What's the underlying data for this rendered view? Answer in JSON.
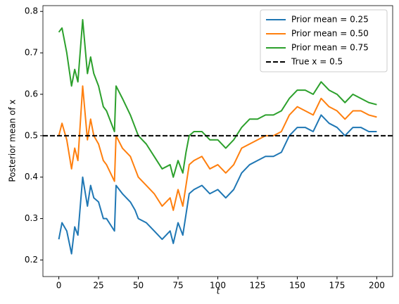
{
  "chart_data": {
    "type": "line",
    "xlabel": "t",
    "ylabel": "Posterior mean of x",
    "x": [
      0,
      2,
      5,
      8,
      10,
      12,
      15,
      18,
      20,
      22,
      25,
      28,
      30,
      35,
      36,
      40,
      45,
      48,
      50,
      55,
      60,
      65,
      70,
      72,
      75,
      78,
      80,
      82,
      85,
      90,
      95,
      100,
      105,
      110,
      115,
      120,
      125,
      130,
      135,
      140,
      145,
      150,
      155,
      160,
      165,
      170,
      175,
      180,
      185,
      190,
      195,
      200
    ],
    "series": [
      {
        "name": "Prior mean = 0.25",
        "color": "#1f77b4",
        "values": [
          0.25,
          0.29,
          0.27,
          0.215,
          0.28,
          0.26,
          0.4,
          0.33,
          0.38,
          0.35,
          0.34,
          0.3,
          0.3,
          0.27,
          0.38,
          0.36,
          0.34,
          0.32,
          0.3,
          0.29,
          0.27,
          0.25,
          0.27,
          0.24,
          0.29,
          0.26,
          0.31,
          0.36,
          0.37,
          0.38,
          0.36,
          0.37,
          0.35,
          0.37,
          0.41,
          0.43,
          0.44,
          0.45,
          0.45,
          0.46,
          0.5,
          0.52,
          0.52,
          0.51,
          0.55,
          0.53,
          0.52,
          0.5,
          0.52,
          0.52,
          0.51,
          0.51
        ]
      },
      {
        "name": "Prior mean = 0.50",
        "color": "#ff7f0e",
        "values": [
          0.5,
          0.53,
          0.49,
          0.42,
          0.47,
          0.44,
          0.62,
          0.49,
          0.54,
          0.5,
          0.48,
          0.44,
          0.43,
          0.39,
          0.5,
          0.47,
          0.45,
          0.42,
          0.4,
          0.38,
          0.36,
          0.33,
          0.35,
          0.32,
          0.37,
          0.33,
          0.38,
          0.43,
          0.44,
          0.45,
          0.42,
          0.43,
          0.41,
          0.43,
          0.47,
          0.48,
          0.49,
          0.5,
          0.5,
          0.51,
          0.55,
          0.57,
          0.56,
          0.55,
          0.59,
          0.57,
          0.56,
          0.54,
          0.56,
          0.56,
          0.55,
          0.545
        ]
      },
      {
        "name": "Prior mean = 0.75",
        "color": "#2ca02c",
        "values": [
          0.75,
          0.76,
          0.7,
          0.62,
          0.66,
          0.63,
          0.78,
          0.65,
          0.69,
          0.65,
          0.62,
          0.57,
          0.56,
          0.51,
          0.62,
          0.59,
          0.55,
          0.52,
          0.5,
          0.48,
          0.45,
          0.42,
          0.43,
          0.4,
          0.44,
          0.41,
          0.46,
          0.5,
          0.51,
          0.51,
          0.49,
          0.49,
          0.47,
          0.49,
          0.52,
          0.54,
          0.54,
          0.55,
          0.55,
          0.56,
          0.59,
          0.61,
          0.61,
          0.6,
          0.63,
          0.61,
          0.6,
          0.58,
          0.6,
          0.59,
          0.58,
          0.575
        ]
      }
    ],
    "hlines": [
      {
        "name": "True x = 0.5",
        "value": 0.5,
        "color": "#000000",
        "dashed": true
      }
    ],
    "xlim": [
      -10,
      210
    ],
    "ylim": [
      0.16,
      0.814
    ],
    "xticks": [
      0,
      25,
      50,
      75,
      100,
      125,
      150,
      175,
      200
    ],
    "yticks": [
      0.2,
      0.3,
      0.4,
      0.5,
      0.6,
      0.7,
      0.8
    ],
    "legend": "upper right"
  }
}
